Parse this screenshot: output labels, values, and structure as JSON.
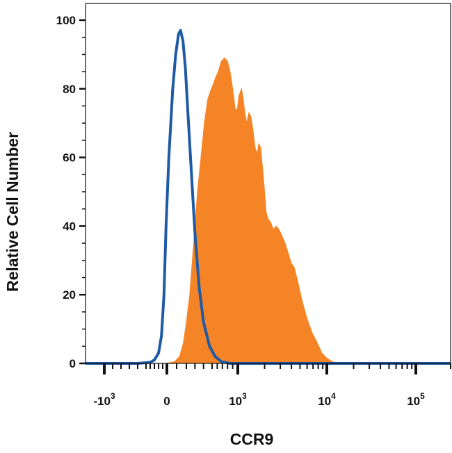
{
  "chart_data": {
    "type": "area",
    "title": "",
    "xlabel": "CCR9",
    "ylabel": "Relative Cell Number",
    "x_scale": "biexponential",
    "xlim": [
      -2000,
      200000
    ],
    "ylim": [
      0,
      100
    ],
    "yticks": [
      0,
      20,
      40,
      60,
      80,
      100
    ],
    "xticks": [
      {
        "value": -1000,
        "base": "-10",
        "exp": "3"
      },
      {
        "value": 0,
        "base": "0",
        "exp": ""
      },
      {
        "value": 1000,
        "base": "10",
        "exp": "3"
      },
      {
        "value": 10000,
        "base": "10",
        "exp": "4"
      },
      {
        "value": 100000,
        "base": "10",
        "exp": "5"
      }
    ],
    "grid": false,
    "legend": "none",
    "series": [
      {
        "style": "filled",
        "color": "#f58426",
        "points": [
          [
            -2000,
            0
          ],
          [
            0,
            0
          ],
          [
            80,
            0.5
          ],
          [
            130,
            2
          ],
          [
            170,
            6
          ],
          [
            200,
            12
          ],
          [
            240,
            20
          ],
          [
            270,
            30
          ],
          [
            300,
            40
          ],
          [
            330,
            50
          ],
          [
            370,
            60
          ],
          [
            410,
            70
          ],
          [
            450,
            77
          ],
          [
            490,
            80
          ],
          [
            530,
            81.5
          ],
          [
            560,
            83
          ],
          [
            620,
            85
          ],
          [
            680,
            88
          ],
          [
            740,
            89
          ],
          [
            800,
            88
          ],
          [
            850,
            85
          ],
          [
            900,
            80
          ],
          [
            950,
            74
          ],
          [
            990,
            74
          ],
          [
            1030,
            78
          ],
          [
            1100,
            80
          ],
          [
            1150,
            77
          ],
          [
            1200,
            73
          ],
          [
            1260,
            70
          ],
          [
            1330,
            73
          ],
          [
            1400,
            72
          ],
          [
            1480,
            68
          ],
          [
            1560,
            63
          ],
          [
            1650,
            61
          ],
          [
            1720,
            64
          ],
          [
            1800,
            63
          ],
          [
            1880,
            58
          ],
          [
            1970,
            52
          ],
          [
            2080,
            44
          ],
          [
            2200,
            42
          ],
          [
            2350,
            41
          ],
          [
            2500,
            39
          ],
          [
            2700,
            40
          ],
          [
            2900,
            39
          ],
          [
            3150,
            37
          ],
          [
            3400,
            35
          ],
          [
            3700,
            32
          ],
          [
            4000,
            29
          ],
          [
            4300,
            28
          ],
          [
            4700,
            24
          ],
          [
            5300,
            18
          ],
          [
            6000,
            13
          ],
          [
            6800,
            9
          ],
          [
            7800,
            6
          ],
          [
            8800,
            3
          ],
          [
            10000,
            1.5
          ],
          [
            11500,
            0.5
          ],
          [
            13500,
            0
          ],
          [
            200000,
            0
          ]
        ]
      },
      {
        "style": "outline",
        "color": "#1f5aa6",
        "points": [
          [
            -2000,
            0
          ],
          [
            -1200,
            0
          ],
          [
            -600,
            0
          ],
          [
            -400,
            0.3
          ],
          [
            -300,
            1
          ],
          [
            -200,
            3
          ],
          [
            -130,
            8
          ],
          [
            -70,
            20
          ],
          [
            -20,
            40
          ],
          [
            20,
            60
          ],
          [
            60,
            80
          ],
          [
            90,
            90
          ],
          [
            120,
            96
          ],
          [
            140,
            97
          ],
          [
            165,
            94
          ],
          [
            190,
            86
          ],
          [
            220,
            72
          ],
          [
            260,
            55
          ],
          [
            300,
            38
          ],
          [
            350,
            22
          ],
          [
            400,
            12
          ],
          [
            470,
            5
          ],
          [
            560,
            2
          ],
          [
            680,
            0.5
          ],
          [
            850,
            0
          ],
          [
            200000,
            0
          ]
        ]
      }
    ]
  }
}
